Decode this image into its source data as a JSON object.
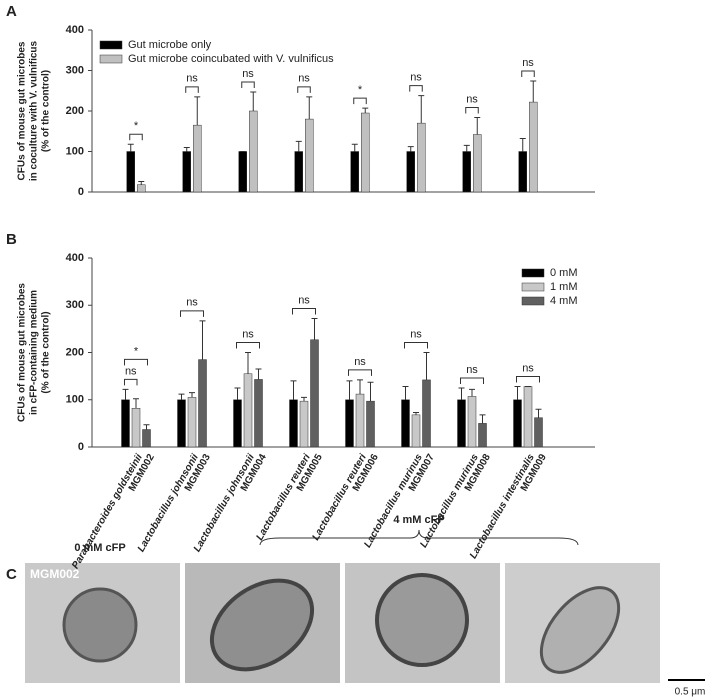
{
  "panel_labels": [
    "A",
    "B",
    "C"
  ],
  "chart_data": [
    {
      "type": "bar",
      "y_label": [
        "CFUs of mouse gut microbes",
        "in coculture with V. vulnificus",
        "(% of the control)"
      ],
      "categories": [
        null,
        null,
        null,
        null,
        null,
        null,
        null,
        null
      ],
      "series": [
        {
          "name": "Gut microbe only",
          "color": "#000000",
          "values": [
            100,
            100,
            100,
            100,
            100,
            100,
            100,
            100
          ],
          "errors": [
            18,
            10,
            0,
            25,
            18,
            12,
            15,
            32
          ]
        },
        {
          "name": "Gut microbe coincubated with V. vulnificus",
          "color": "#c0c0c0",
          "values": [
            18,
            165,
            200,
            180,
            195,
            170,
            142,
            222
          ],
          "errors": [
            8,
            70,
            47,
            55,
            12,
            68,
            42,
            52
          ]
        }
      ],
      "annotations": [
        [
          "*"
        ],
        [
          "ns"
        ],
        [
          "ns"
        ],
        [
          "ns"
        ],
        [
          "*"
        ],
        [
          "ns"
        ],
        [
          "ns"
        ],
        [
          "ns"
        ]
      ],
      "ylim": [
        0,
        400
      ],
      "yticks": [
        0,
        100,
        200,
        300,
        400
      ],
      "legend": "upper left"
    },
    {
      "type": "bar",
      "y_label": [
        "CFUs of mouse gut microbes",
        "in cFP-containing medium",
        "(% of the control)"
      ],
      "categories": [
        "Parabacteroides goldsteinii",
        "Lactobacillus johnsonii",
        "Lactobacillus johnsonii",
        "Lactobacillus reuteri",
        "Lactobacillus reuteri",
        "Lactobacillus murinus",
        "Lactobacillus murinus",
        "Lactobacillus intestinalis"
      ],
      "strains": [
        "MGM002",
        "MGM003",
        "MGM004",
        "MGM005",
        "MGM006",
        "MGM007",
        "MGM008",
        "MGM009"
      ],
      "series": [
        {
          "name": "0 mM",
          "color": "#000000",
          "values": [
            100,
            100,
            100,
            100,
            100,
            100,
            100,
            100
          ],
          "errors": [
            22,
            12,
            25,
            40,
            40,
            28,
            25,
            28
          ]
        },
        {
          "name": "1 mM",
          "color": "#c8c8c8",
          "values": [
            82,
            105,
            155,
            97,
            112,
            68,
            107,
            128
          ],
          "errors": [
            20,
            10,
            45,
            8,
            30,
            5,
            15,
            0
          ]
        },
        {
          "name": "4 mM",
          "color": "#606060",
          "values": [
            37,
            185,
            143,
            227,
            97,
            142,
            50,
            62
          ],
          "errors": [
            10,
            82,
            22,
            45,
            40,
            58,
            18,
            18
          ]
        }
      ],
      "annotations": [
        [
          "*",
          "ns"
        ],
        [
          "ns"
        ],
        [
          "ns"
        ],
        [
          "ns"
        ],
        [
          "ns"
        ],
        [
          "ns"
        ],
        [
          "ns"
        ],
        [
          "ns"
        ]
      ],
      "ylim": [
        0,
        400
      ],
      "yticks": [
        0,
        100,
        200,
        300,
        400
      ],
      "legend": "upper right"
    }
  ],
  "panel_c": {
    "control_label": "0 mM cFP",
    "treated_label": "4 mM cFP",
    "strain_label": "MGM002",
    "scale_label": "0.5 μm"
  }
}
